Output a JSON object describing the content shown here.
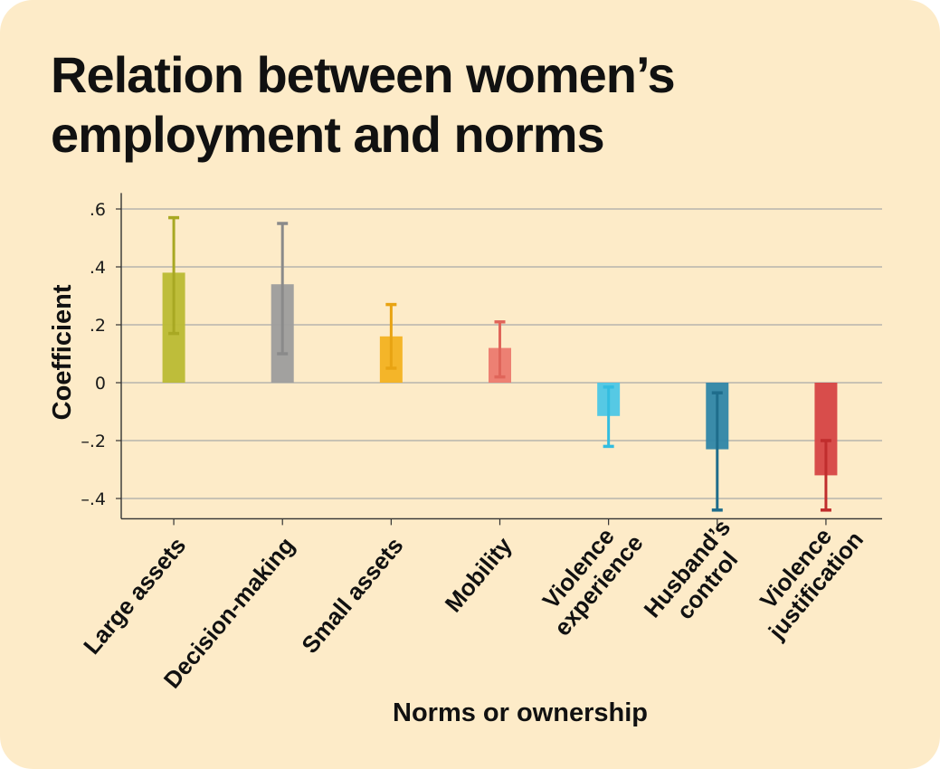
{
  "title": "Relation between women’s employment and norms",
  "chart_data": {
    "type": "bar",
    "title": "Relation between women’s employment and norms",
    "xlabel": "Norms or ownership",
    "ylabel": "Coefficient",
    "categories": [
      [
        "Large assets"
      ],
      [
        "Decision-making"
      ],
      [
        "Small assets"
      ],
      [
        "Mobility"
      ],
      [
        "Violence",
        "experience"
      ],
      [
        "Husband’s",
        "control"
      ],
      [
        "Violence",
        "justification"
      ]
    ],
    "values": [
      0.38,
      0.34,
      0.16,
      0.12,
      -0.115,
      -0.23,
      -0.32
    ],
    "error_low": [
      0.17,
      0.1,
      0.05,
      0.02,
      -0.22,
      -0.44,
      -0.44
    ],
    "error_high": [
      0.57,
      0.55,
      0.27,
      0.21,
      -0.015,
      -0.035,
      -0.2
    ],
    "colors": [
      "#bbbb33",
      "#9d9d9d",
      "#f3b221",
      "#ec7a6f",
      "#4dc7e6",
      "#2f86a8",
      "#d64444"
    ],
    "error_colors": [
      "#a8a823",
      "#8a8a8a",
      "#e8a312",
      "#e0655a",
      "#33bde0",
      "#1f6d8c",
      "#c02d2d"
    ],
    "yticks": [
      0.6,
      0.4,
      0.2,
      0,
      -0.2,
      -0.4
    ],
    "ytick_labels": [
      ".6",
      ".4",
      ".2",
      "0",
      "–.2",
      "–.4"
    ],
    "ylim": [
      -0.47,
      0.63
    ],
    "grid": true
  }
}
